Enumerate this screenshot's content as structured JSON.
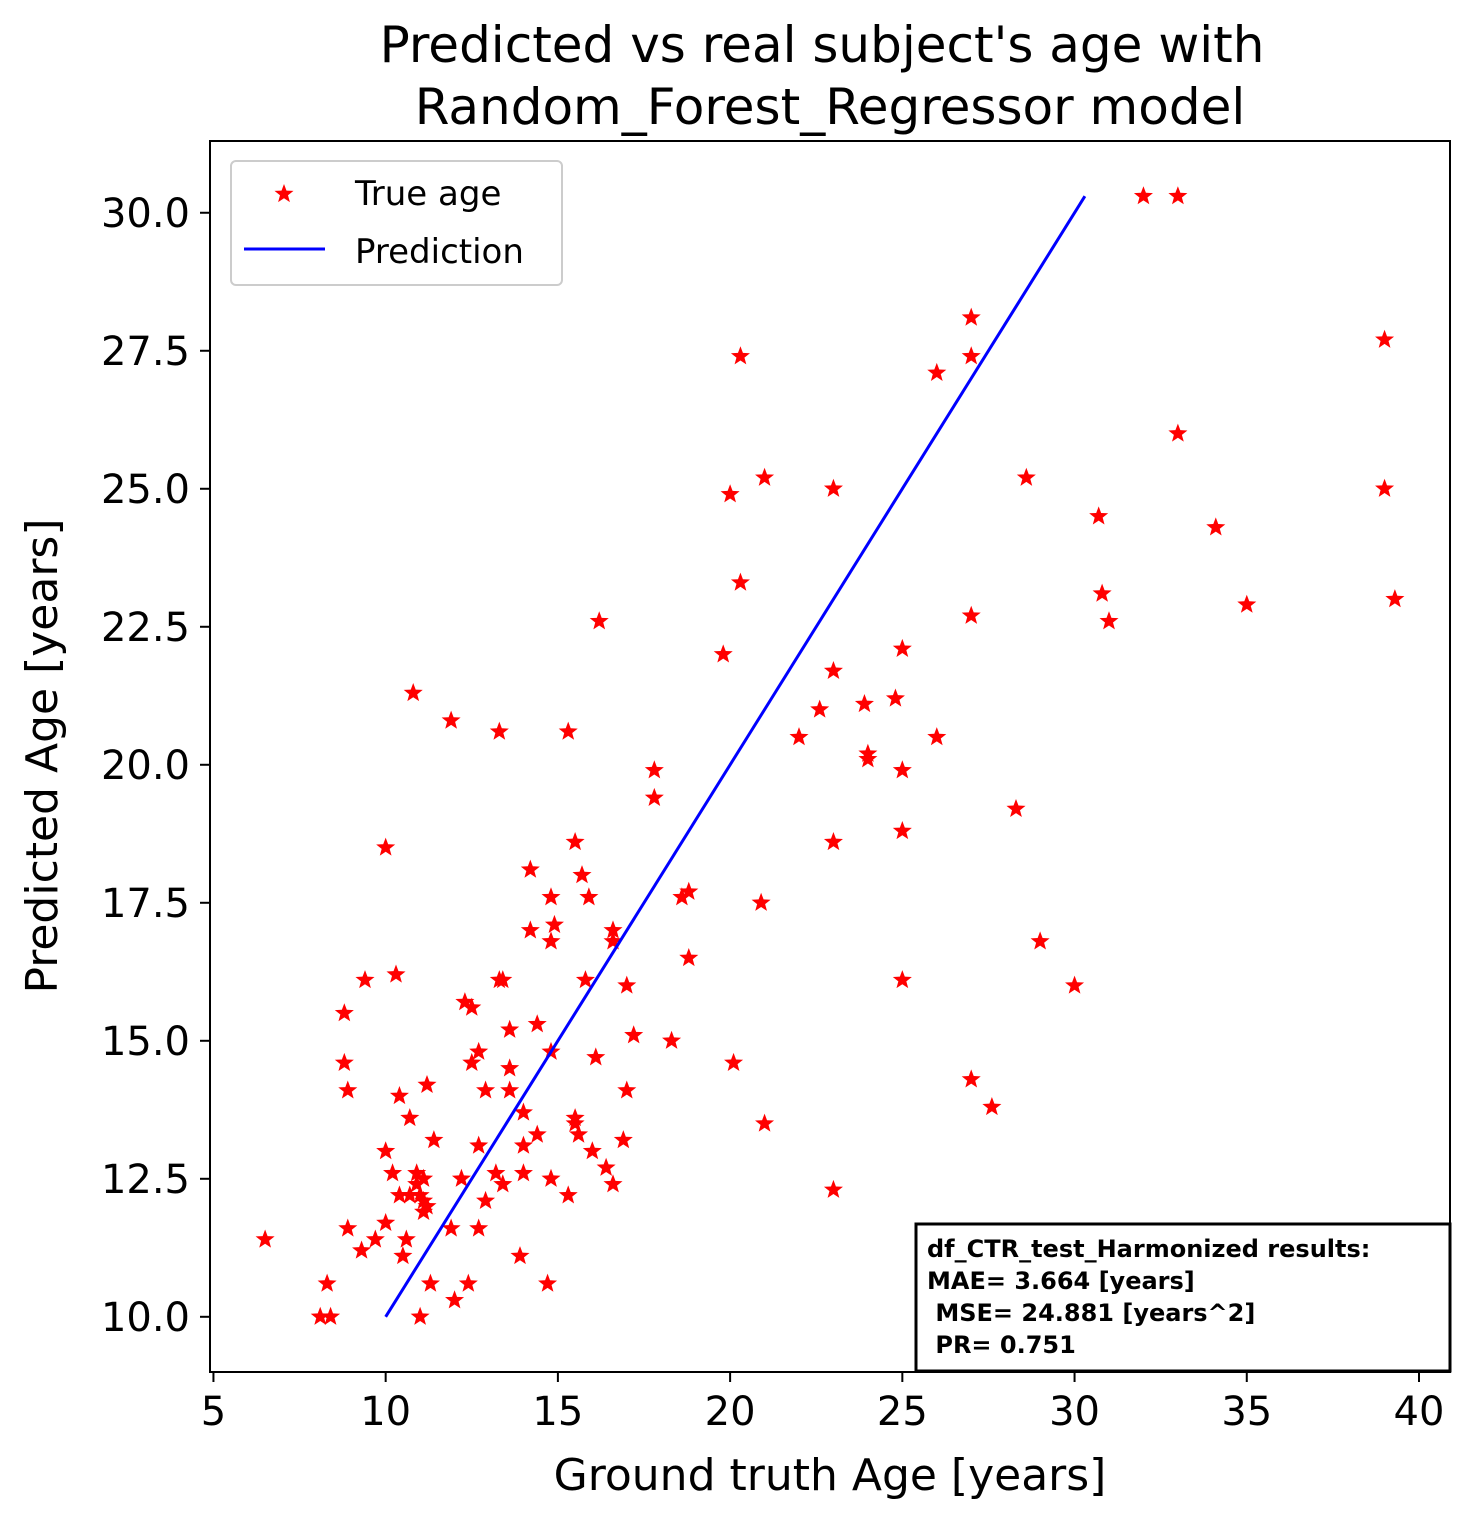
{
  "chart_data": {
    "type": "scatter",
    "title_lines": [
      "Predicted vs real subject's age with",
      "Random_Forest_Regressor model"
    ],
    "xlabel": "Ground truth Age [years]",
    "ylabel": "Predicted Age [years]",
    "xlim": [
      4.9,
      40.9
    ],
    "ylim": [
      9.0,
      31.3
    ],
    "xticks": [
      5,
      10,
      15,
      20,
      25,
      30,
      35,
      40
    ],
    "xtick_labels": [
      "5",
      "10",
      "15",
      "20",
      "25",
      "30",
      "35",
      "40"
    ],
    "yticks": [
      10.0,
      12.5,
      15.0,
      17.5,
      20.0,
      22.5,
      25.0,
      27.5,
      30.0
    ],
    "ytick_labels": [
      "10.0",
      "12.5",
      "15.0",
      "17.5",
      "20.0",
      "22.5",
      "25.0",
      "27.5",
      "30.0"
    ],
    "grid": false,
    "legend_position": "top-left",
    "series": [
      {
        "name": "True age",
        "kind": "scatter",
        "marker": "star",
        "color": "#ff0000",
        "points": [
          [
            6.5,
            11.4
          ],
          [
            8.1,
            10.0
          ],
          [
            8.3,
            10.6
          ],
          [
            8.4,
            10.0
          ],
          [
            8.8,
            14.6
          ],
          [
            8.8,
            15.5
          ],
          [
            8.9,
            14.1
          ],
          [
            8.9,
            11.6
          ],
          [
            9.3,
            11.2
          ],
          [
            9.4,
            16.1
          ],
          [
            9.7,
            11.4
          ],
          [
            10.0,
            11.7
          ],
          [
            10.0,
            13.0
          ],
          [
            10.0,
            18.5
          ],
          [
            10.2,
            12.6
          ],
          [
            10.3,
            16.2
          ],
          [
            10.4,
            12.2
          ],
          [
            10.4,
            14.0
          ],
          [
            10.5,
            11.1
          ],
          [
            10.6,
            11.4
          ],
          [
            10.7,
            12.2
          ],
          [
            10.7,
            13.6
          ],
          [
            10.8,
            21.3
          ],
          [
            10.9,
            12.4
          ],
          [
            10.9,
            12.6
          ],
          [
            11.0,
            12.2
          ],
          [
            11.0,
            10.0
          ],
          [
            11.1,
            12.5
          ],
          [
            11.1,
            11.9
          ],
          [
            11.1,
            12.1
          ],
          [
            11.2,
            14.2
          ],
          [
            11.2,
            12.0
          ],
          [
            11.3,
            10.6
          ],
          [
            11.4,
            13.2
          ],
          [
            11.9,
            11.6
          ],
          [
            11.9,
            20.8
          ],
          [
            12.0,
            10.3
          ],
          [
            12.2,
            12.5
          ],
          [
            12.3,
            15.7
          ],
          [
            12.4,
            10.6
          ],
          [
            12.5,
            15.6
          ],
          [
            12.5,
            14.6
          ],
          [
            12.7,
            14.8
          ],
          [
            12.7,
            13.1
          ],
          [
            12.7,
            11.6
          ],
          [
            12.9,
            14.1
          ],
          [
            12.9,
            12.1
          ],
          [
            13.2,
            12.6
          ],
          [
            13.3,
            20.6
          ],
          [
            13.3,
            16.1
          ],
          [
            13.4,
            16.1
          ],
          [
            13.4,
            12.4
          ],
          [
            13.6,
            15.2
          ],
          [
            13.6,
            14.5
          ],
          [
            13.6,
            14.1
          ],
          [
            13.9,
            11.1
          ],
          [
            14.0,
            13.7
          ],
          [
            14.0,
            13.1
          ],
          [
            14.0,
            12.6
          ],
          [
            14.2,
            17.0
          ],
          [
            14.2,
            18.1
          ],
          [
            14.4,
            15.3
          ],
          [
            14.4,
            13.3
          ],
          [
            14.7,
            10.6
          ],
          [
            14.8,
            16.8
          ],
          [
            14.8,
            17.6
          ],
          [
            14.8,
            14.8
          ],
          [
            14.8,
            12.5
          ],
          [
            14.9,
            17.1
          ],
          [
            15.3,
            12.2
          ],
          [
            15.3,
            20.6
          ],
          [
            15.5,
            18.6
          ],
          [
            15.5,
            13.5
          ],
          [
            15.5,
            13.6
          ],
          [
            15.6,
            13.3
          ],
          [
            15.7,
            18.0
          ],
          [
            15.8,
            16.1
          ],
          [
            15.9,
            17.6
          ],
          [
            16.0,
            13.0
          ],
          [
            16.1,
            14.7
          ],
          [
            16.2,
            22.6
          ],
          [
            16.4,
            12.7
          ],
          [
            16.6,
            17.0
          ],
          [
            16.6,
            16.8
          ],
          [
            16.6,
            12.4
          ],
          [
            16.9,
            13.2
          ],
          [
            17.0,
            16.0
          ],
          [
            17.0,
            14.1
          ],
          [
            17.2,
            15.1
          ],
          [
            17.8,
            19.9
          ],
          [
            17.8,
            19.4
          ],
          [
            18.3,
            15.0
          ],
          [
            18.6,
            17.6
          ],
          [
            18.8,
            17.7
          ],
          [
            18.8,
            16.5
          ],
          [
            19.8,
            22.0
          ],
          [
            20.0,
            24.9
          ],
          [
            20.1,
            14.6
          ],
          [
            20.3,
            27.4
          ],
          [
            20.3,
            23.3
          ],
          [
            20.9,
            17.5
          ],
          [
            21.0,
            25.2
          ],
          [
            21.0,
            13.5
          ],
          [
            22.0,
            20.5
          ],
          [
            22.6,
            21.0
          ],
          [
            23.0,
            25.0
          ],
          [
            23.0,
            21.7
          ],
          [
            23.0,
            18.6
          ],
          [
            23.0,
            12.3
          ],
          [
            23.9,
            21.1
          ],
          [
            24.0,
            20.2
          ],
          [
            24.0,
            20.1
          ],
          [
            24.8,
            21.2
          ],
          [
            25.0,
            22.1
          ],
          [
            25.0,
            19.9
          ],
          [
            25.0,
            18.8
          ],
          [
            25.0,
            16.1
          ],
          [
            26.0,
            27.1
          ],
          [
            26.0,
            20.5
          ],
          [
            27.0,
            28.1
          ],
          [
            27.0,
            27.4
          ],
          [
            27.0,
            22.7
          ],
          [
            27.0,
            14.3
          ],
          [
            27.6,
            13.8
          ],
          [
            28.3,
            19.2
          ],
          [
            28.6,
            25.2
          ],
          [
            29.0,
            16.8
          ],
          [
            30.0,
            16.0
          ],
          [
            30.7,
            24.5
          ],
          [
            30.8,
            23.1
          ],
          [
            31.0,
            22.6
          ],
          [
            32.0,
            30.3
          ],
          [
            33.0,
            30.3
          ],
          [
            33.0,
            26.0
          ],
          [
            34.1,
            24.3
          ],
          [
            35.0,
            22.9
          ],
          [
            39.0,
            27.7
          ],
          [
            39.0,
            25.0
          ],
          [
            39.3,
            23.0
          ]
        ]
      },
      {
        "name": "Prediction",
        "kind": "line",
        "color": "#0000ff",
        "points": [
          [
            10.0,
            10.0
          ],
          [
            30.3,
            30.3
          ]
        ]
      }
    ],
    "annotation": {
      "lines": [
        "df_CTR_test_Harmonized results:",
        "MAE= 3.664 [years]",
        " MSE= 24.881 [years^2]",
        " PR= 0.751"
      ],
      "position": "bottom-right"
    }
  }
}
